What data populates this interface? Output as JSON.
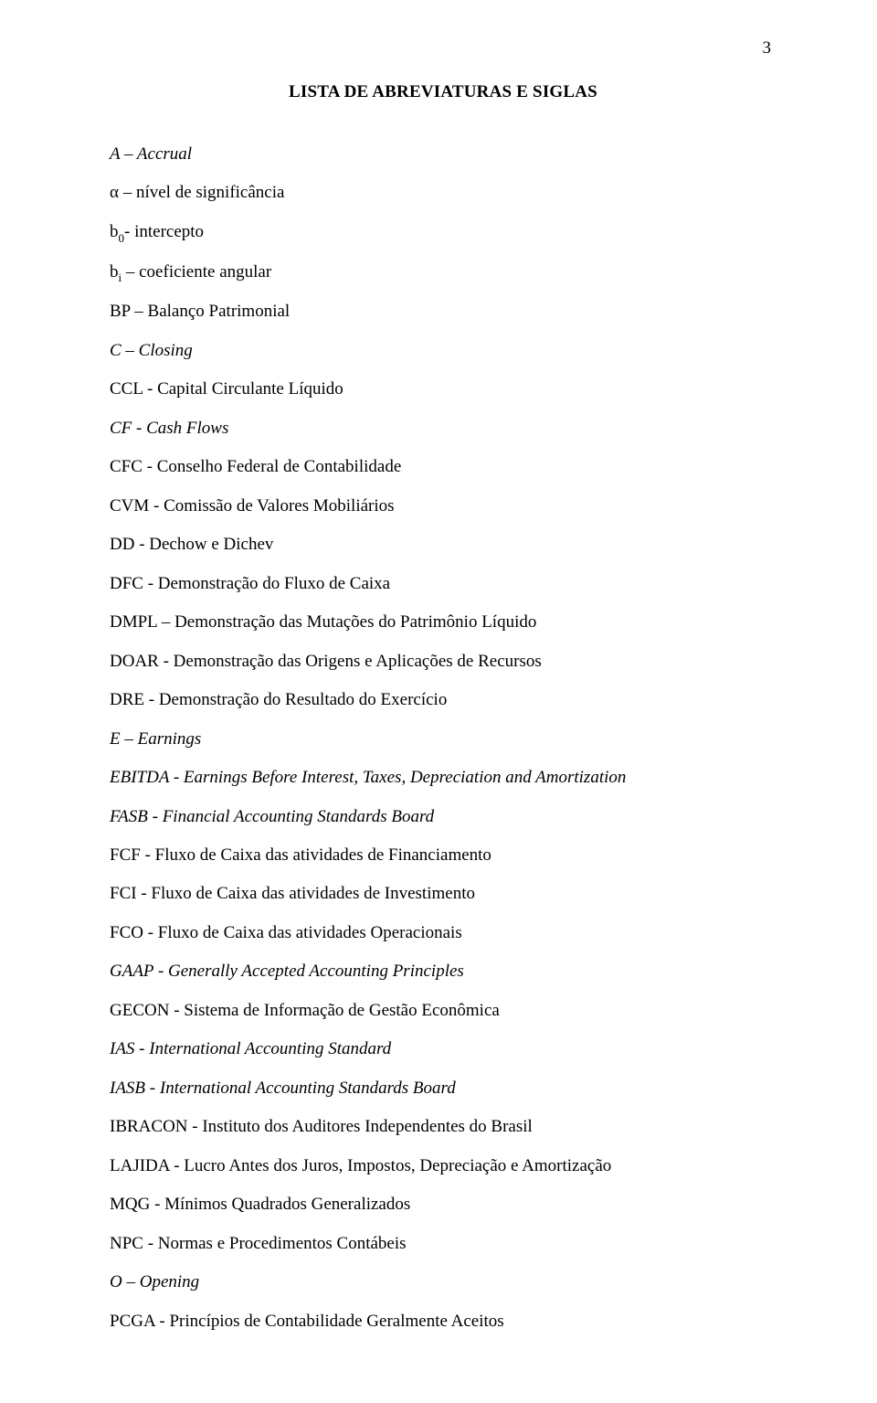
{
  "page_number": "3",
  "title": "LISTA DE ABREVIATURAS E SIGLAS",
  "entries": [
    {
      "pre": "A – Accrual",
      "subscript": "",
      "post": "",
      "italic": true,
      "has_sub": false
    },
    {
      "pre": "α – nível de significância",
      "subscript": "",
      "post": "",
      "italic": false,
      "has_sub": false
    },
    {
      "pre": "b",
      "subscript": "0",
      "post": "- intercepto",
      "italic": false,
      "has_sub": true
    },
    {
      "pre": "b",
      "subscript": "i",
      "post": " – coeficiente angular",
      "italic": false,
      "has_sub": true
    },
    {
      "pre": "BP – Balanço Patrimonial",
      "subscript": "",
      "post": "",
      "italic": false,
      "has_sub": false
    },
    {
      "pre": "C – Closing",
      "subscript": "",
      "post": "",
      "italic": true,
      "has_sub": false
    },
    {
      "pre": "CCL - Capital Circulante Líquido",
      "subscript": "",
      "post": "",
      "italic": false,
      "has_sub": false
    },
    {
      "pre": "CF - Cash Flows",
      "subscript": "",
      "post": "",
      "italic": true,
      "has_sub": false
    },
    {
      "pre": "CFC - Conselho Federal de Contabilidade",
      "subscript": "",
      "post": "",
      "italic": false,
      "has_sub": false
    },
    {
      "pre": "CVM - Comissão de Valores Mobiliários",
      "subscript": "",
      "post": "",
      "italic": false,
      "has_sub": false
    },
    {
      "pre": "DD - Dechow e Dichev",
      "subscript": "",
      "post": "",
      "italic": false,
      "has_sub": false
    },
    {
      "pre": "DFC - Demonstração do Fluxo de Caixa",
      "subscript": "",
      "post": "",
      "italic": false,
      "has_sub": false
    },
    {
      "pre": "DMPL – Demonstração das Mutações do Patrimônio Líquido",
      "subscript": "",
      "post": "",
      "italic": false,
      "has_sub": false
    },
    {
      "pre": "DOAR - Demonstração das Origens e Aplicações de Recursos",
      "subscript": "",
      "post": "",
      "italic": false,
      "has_sub": false
    },
    {
      "pre": "DRE - Demonstração do Resultado do Exercício",
      "subscript": "",
      "post": "",
      "italic": false,
      "has_sub": false
    },
    {
      "pre": "E – Earnings",
      "subscript": "",
      "post": "",
      "italic": true,
      "has_sub": false
    },
    {
      "pre": "EBITDA - Earnings Before Interest, Taxes, Depreciation and Amortization",
      "subscript": "",
      "post": "",
      "italic": true,
      "has_sub": false
    },
    {
      "pre": "FASB - Financial Accounting Standards Board",
      "subscript": "",
      "post": "",
      "italic": true,
      "has_sub": false
    },
    {
      "pre": "FCF - Fluxo de Caixa das atividades de Financiamento",
      "subscript": "",
      "post": "",
      "italic": false,
      "has_sub": false
    },
    {
      "pre": "FCI - Fluxo de Caixa das atividades de Investimento",
      "subscript": "",
      "post": "",
      "italic": false,
      "has_sub": false
    },
    {
      "pre": "FCO - Fluxo de Caixa das atividades Operacionais",
      "subscript": "",
      "post": "",
      "italic": false,
      "has_sub": false
    },
    {
      "pre": "GAAP - Generally Accepted Accounting Principles",
      "subscript": "",
      "post": "",
      "italic": true,
      "has_sub": false
    },
    {
      "pre": "GECON - Sistema de Informação de Gestão Econômica",
      "subscript": "",
      "post": "",
      "italic": false,
      "has_sub": false
    },
    {
      "pre": "IAS - International Accounting Standard",
      "subscript": "",
      "post": "",
      "italic": true,
      "has_sub": false
    },
    {
      "pre": "IASB - International Accounting Standards Board",
      "subscript": "",
      "post": "",
      "italic": true,
      "has_sub": false
    },
    {
      "pre": "IBRACON - Instituto dos Auditores Independentes do Brasil",
      "subscript": "",
      "post": "",
      "italic": false,
      "has_sub": false
    },
    {
      "pre": "LAJIDA - Lucro Antes dos Juros, Impostos, Depreciação e Amortização",
      "subscript": "",
      "post": "",
      "italic": false,
      "has_sub": false
    },
    {
      "pre": "MQG - Mínimos Quadrados Generalizados",
      "subscript": "",
      "post": "",
      "italic": false,
      "has_sub": false
    },
    {
      "pre": "NPC - Normas e Procedimentos Contábeis",
      "subscript": "",
      "post": "",
      "italic": false,
      "has_sub": false
    },
    {
      "pre": "O – Opening",
      "subscript": "",
      "post": "",
      "italic": true,
      "has_sub": false
    },
    {
      "pre": "PCGA - Princípios de Contabilidade Geralmente Aceitos",
      "subscript": "",
      "post": "",
      "italic": false,
      "has_sub": false
    }
  ]
}
